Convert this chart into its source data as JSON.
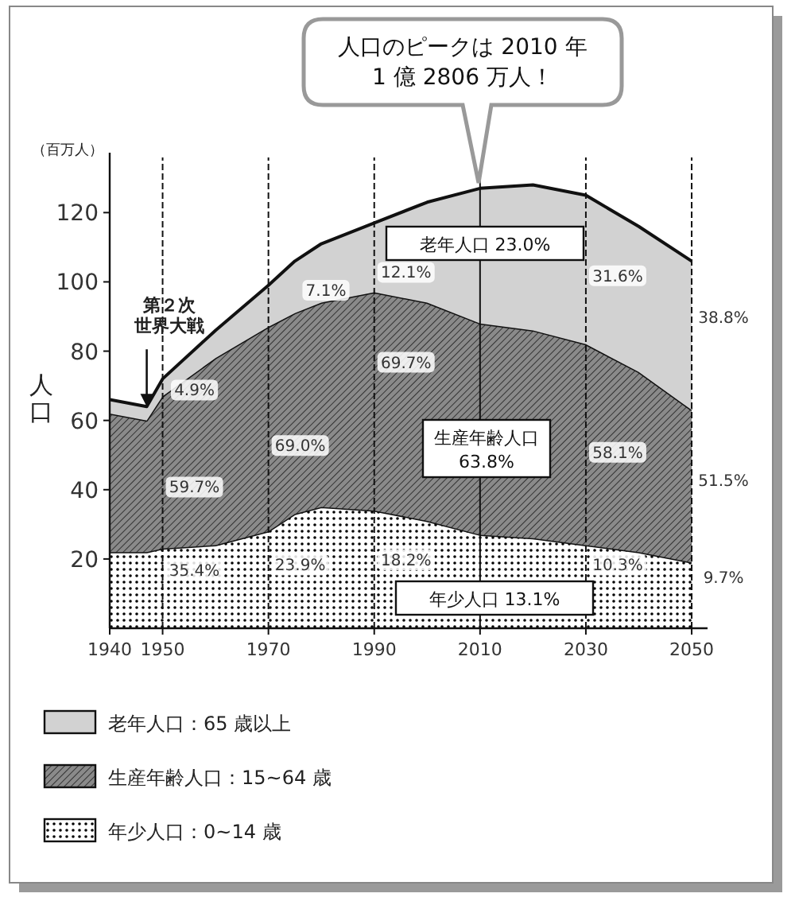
{
  "chart_data": {
    "type": "area",
    "stacked": true,
    "x": [
      1940,
      1947,
      1950,
      1960,
      1970,
      1975,
      1980,
      1990,
      2000,
      2010,
      2020,
      2030,
      2040,
      2050
    ],
    "series": [
      {
        "name": "年少人口：0~14 歳",
        "color": "#ffffff",
        "values": [
          22,
          22,
          23,
          24,
          28,
          33,
          35,
          34,
          31,
          27,
          26,
          24,
          22,
          19
        ]
      },
      {
        "name": "生産年齢人口：15~64 歳",
        "color": "#8a8a8a",
        "values": [
          40,
          38,
          44,
          54,
          59,
          58,
          59,
          63,
          63,
          61,
          60,
          58,
          52,
          44
        ]
      },
      {
        "name": "老年人口：65 歳以上",
        "color": "#d2d2d2",
        "values": [
          4,
          4,
          5,
          8,
          12,
          15,
          17,
          20,
          29,
          39,
          42,
          43,
          42,
          43
        ]
      }
    ],
    "xlim": [
      1940,
      2053
    ],
    "ylim": [
      0,
      135
    ],
    "xticks": [
      1940,
      1950,
      1970,
      1990,
      2010,
      2030,
      2050
    ],
    "yticks": [
      20,
      40,
      60,
      80,
      100,
      120
    ],
    "ylabel": "人口",
    "legend": "bottom",
    "ref_lines": [
      {
        "axis": "x",
        "value": 1950,
        "line_style": "dashed"
      },
      {
        "axis": "x",
        "value": 1970,
        "line_style": "dashed"
      },
      {
        "axis": "x",
        "value": 1990,
        "line_style": "dashed"
      },
      {
        "axis": "x",
        "value": 2010,
        "line_style": "solid"
      },
      {
        "axis": "x",
        "value": 2030,
        "line_style": "dashed"
      },
      {
        "axis": "x",
        "value": 2050,
        "line_style": "dashed"
      }
    ],
    "annotations": [
      "（百万人）",
      {
        "text": "第２次世界大戦",
        "x": 1947,
        "y": 64
      },
      "人口のピークは 2010 年\n1 億 2806 万人！",
      "老年人口 23.0%",
      "生産年齢人口\n63.8%",
      "年少人口 13.1%",
      {
        "text": "4.9%",
        "x": 1950,
        "y": 69
      },
      {
        "text": "59.7%",
        "x": 1950,
        "y": 41
      },
      {
        "text": "35.4%",
        "x": 1950,
        "y": 17
      },
      "7.1%",
      {
        "text": "69.0%",
        "x": 1970,
        "y": 53
      },
      {
        "text": "23.9%",
        "x": 1970,
        "y": 18.5
      },
      {
        "text": "12.1%",
        "x": 1990,
        "y": 103
      },
      {
        "text": "69.7%",
        "x": 1990,
        "y": 77
      },
      {
        "text": "18.2%",
        "x": 1990,
        "y": 20
      },
      {
        "text": "31.6%",
        "x": 2030,
        "y": 102
      },
      {
        "text": "58.1%",
        "x": 2030,
        "y": 51
      },
      {
        "text": "10.3%",
        "x": 2030,
        "y": 18.5
      },
      {
        "text": "38.8%",
        "x": 2050,
        "y": 90
      },
      {
        "text": "51.5%",
        "x": 2050,
        "y": 43
      },
      {
        "text": "9.7%",
        "x": 2050,
        "y": 15
      }
    ]
  }
}
